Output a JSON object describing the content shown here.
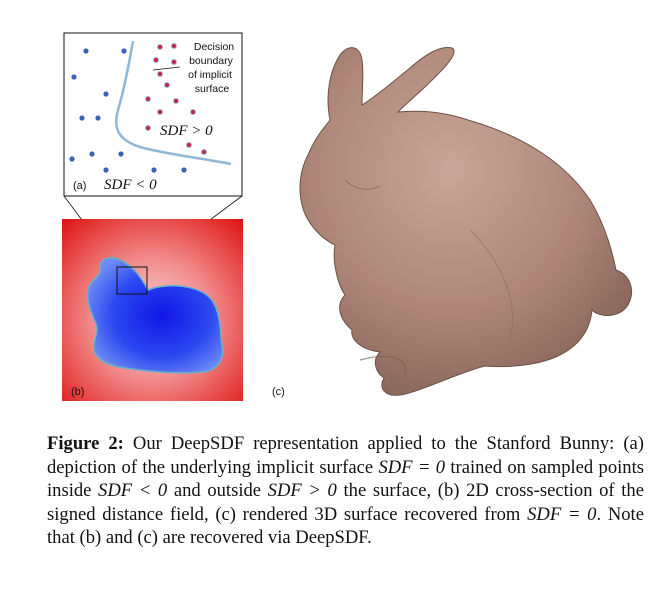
{
  "figure": {
    "panel_a": {
      "label": "(a)",
      "annotation_lines": [
        "Decision",
        "boundary",
        "of implicit",
        "surface"
      ],
      "sdf_positive": "SDF > 0",
      "sdf_negative": "SDF < 0"
    },
    "panel_b": {
      "label": "(b)"
    },
    "panel_c": {
      "label": "(c)"
    },
    "colors": {
      "outside_point": "#c0264a",
      "inside_point": "#3a62b5",
      "boundary": "#8fb8d8",
      "field_outside": "#e01818",
      "field_inside": "#1a2ee8",
      "bunny": "#b08a7c"
    }
  },
  "caption": {
    "label": "Figure 2:",
    "segments": [
      " Our DeepSDF representation applied to the Stanford Bunny: (a) depiction of the underlying implicit surface ",
      "SDF = 0",
      " trained on sampled points inside ",
      "SDF < 0",
      " and outside ",
      "SDF > 0",
      " the surface, (b) 2D cross-section of the signed distance field, (c) rendered 3D surface recovered from ",
      "SDF = 0",
      ". Note that (b) and (c) are recovered via DeepSDF."
    ]
  }
}
